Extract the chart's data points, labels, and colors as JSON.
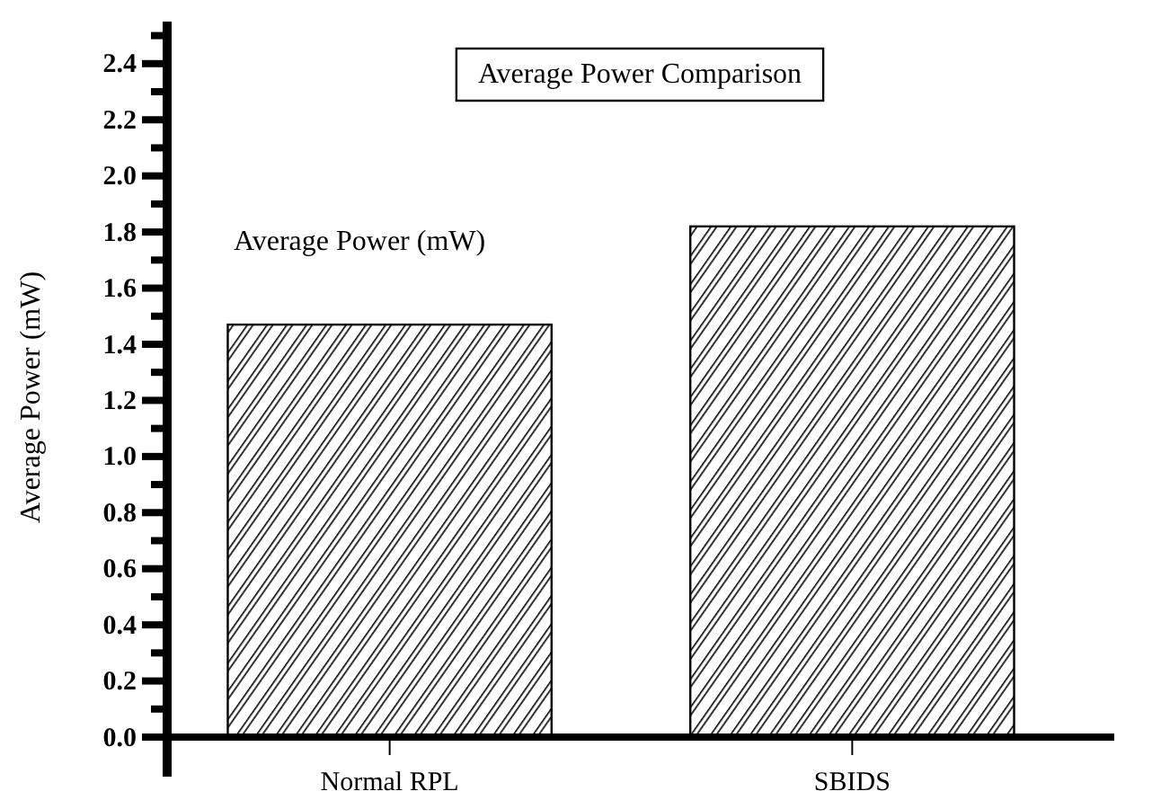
{
  "chart_data": {
    "type": "bar",
    "title": "Average Power Comparison",
    "ylabel": "Average Power (mW)",
    "annotations": [
      "Average Power (mW)"
    ],
    "categories": [
      "Normal RPL",
      "SBIDS"
    ],
    "values": [
      1.47,
      1.82
    ],
    "color": "#000000",
    "ylim": [
      0,
      2.55
    ],
    "yticks": [
      {
        "value": 0,
        "label": "0.0"
      },
      {
        "value": 0.1,
        "label": null
      },
      0.2,
      {
        "value": 0.3,
        "label": null
      },
      0.4,
      {
        "value": 0.5,
        "label": null
      },
      0.6,
      {
        "value": 0.7,
        "label": null
      },
      0.8,
      {
        "value": 0.9,
        "label": null
      },
      {
        "value": 1,
        "label": "1.0"
      },
      {
        "value": 1.1,
        "label": null
      },
      1.2,
      {
        "value": 1.3,
        "label": null
      },
      1.4,
      {
        "value": 1.5,
        "label": null
      },
      1.6,
      {
        "value": 1.7,
        "label": null
      },
      1.8,
      {
        "value": 1.9,
        "label": null
      },
      {
        "value": 2,
        "label": "2.0"
      },
      {
        "value": 2.1,
        "label": null
      },
      2.2,
      {
        "value": 2.3,
        "label": null
      },
      2.4,
      {
        "value": 2.5,
        "label": null
      }
    ],
    "grid": false
  }
}
